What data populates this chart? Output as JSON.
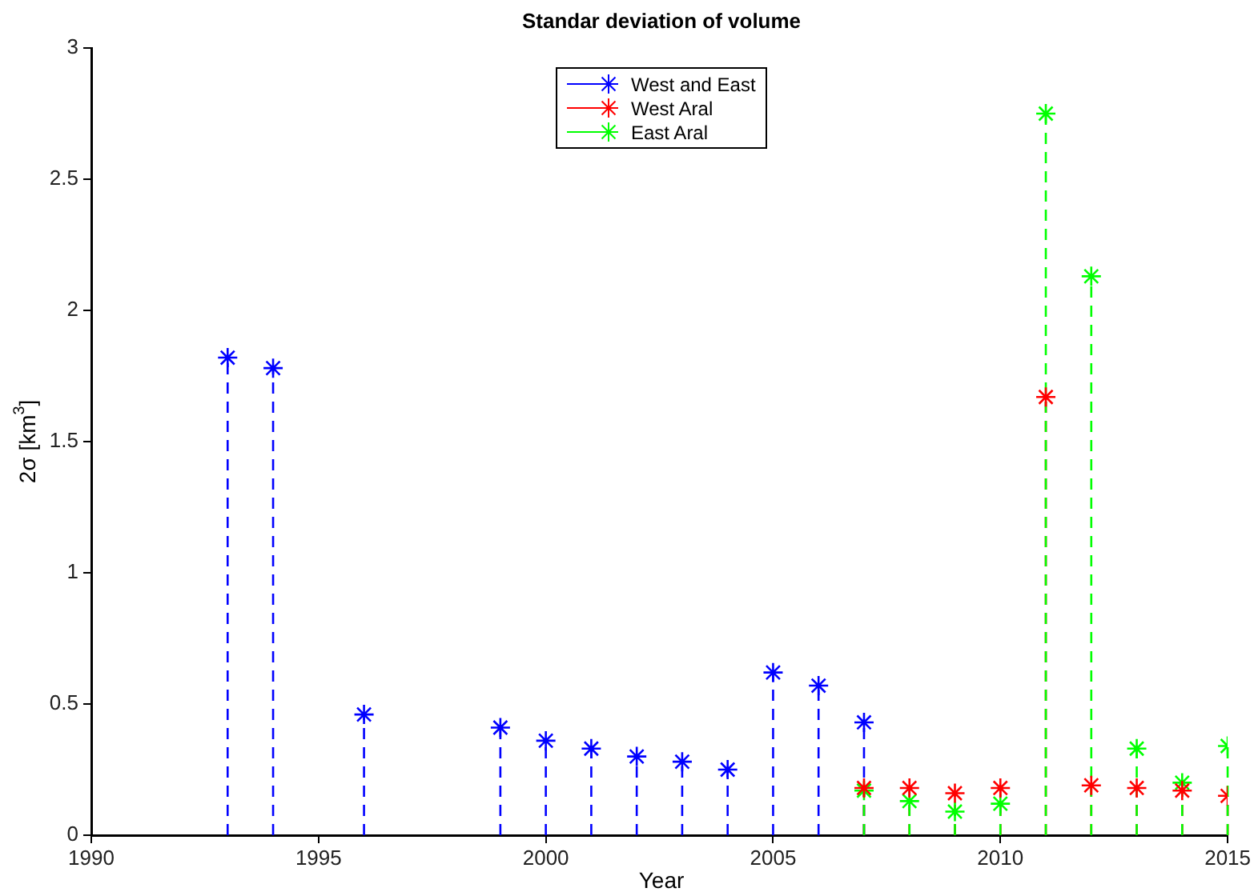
{
  "chart_data": {
    "type": "lollipop",
    "title": "Standar deviation of volume",
    "xlabel": "Year",
    "ylabel": "2σ [km$^{3}$]",
    "xlim": [
      1990,
      2015
    ],
    "xticks": [
      1990,
      1995,
      2000,
      2005,
      2010,
      2015
    ],
    "ylim": [
      0,
      3
    ],
    "yticks": [
      0,
      0.5,
      1,
      1.5,
      2,
      2.5,
      3
    ],
    "grid": false,
    "legend": "top",
    "marker": "cross",
    "line_style": "dashed",
    "series": [
      {
        "name": "West and East",
        "color": "#0000ff",
        "x": [
          1993,
          1994,
          1996,
          1999,
          2000,
          2001,
          2002,
          2003,
          2004,
          2005,
          2006,
          2007
        ],
        "values": [
          1.82,
          1.78,
          0.46,
          0.41,
          0.36,
          0.33,
          0.3,
          0.28,
          0.25,
          0.62,
          0.57,
          0.43
        ]
      },
      {
        "name": "West Aral",
        "color": "#ff0000",
        "x": [
          2007,
          2008,
          2009,
          2010,
          2011,
          2012,
          2013,
          2014,
          2015
        ],
        "values": [
          0.18,
          0.18,
          0.16,
          0.18,
          1.67,
          0.19,
          0.18,
          0.17,
          0.15
        ]
      },
      {
        "name": "East Aral",
        "color": "#00ff00",
        "x": [
          2007,
          2008,
          2009,
          2010,
          2011,
          2012,
          2013,
          2014,
          2015
        ],
        "values": [
          0.17,
          0.13,
          0.09,
          0.12,
          2.75,
          2.13,
          0.33,
          0.2,
          0.34
        ]
      }
    ]
  }
}
